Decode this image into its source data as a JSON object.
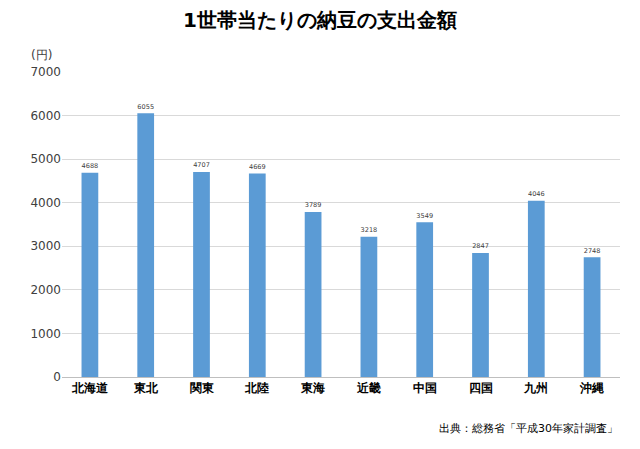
{
  "chart_data": {
    "type": "bar",
    "title": "1世帯当たりの納豆の支出金額",
    "ylabel": "(円)",
    "categories": [
      "北海道",
      "東北",
      "関東",
      "北陸",
      "東海",
      "近畿",
      "中国",
      "四国",
      "九州",
      "沖縄"
    ],
    "values": [
      4688,
      6055,
      4707,
      4669,
      3789,
      3218,
      3549,
      2847,
      4046,
      2748
    ],
    "color": "#5b9bd5",
    "ylim": [
      0,
      7000
    ],
    "yticks": [
      0,
      1000,
      2000,
      3000,
      4000,
      5000,
      6000,
      7000
    ],
    "grid": true,
    "data_labels": true,
    "annotations": [
      "出典：総務省「平成30年家計調査」"
    ]
  }
}
